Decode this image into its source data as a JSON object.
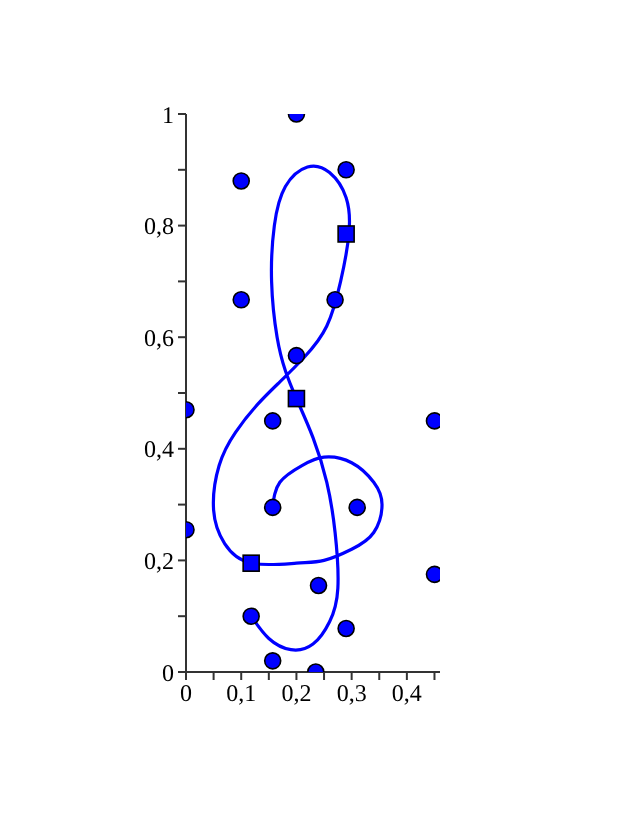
{
  "chart_data": {
    "type": "line",
    "xlim": [
      0,
      0.46
    ],
    "ylim": [
      0,
      1
    ],
    "xticks": [
      0,
      {
        "value": 0.05,
        "label": null
      },
      {
        "value": 0.1,
        "label": "0,1"
      },
      {
        "value": 0.15,
        "label": null
      },
      {
        "value": 0.2,
        "label": "0,2"
      },
      {
        "value": 0.25,
        "label": null
      },
      {
        "value": 0.3,
        "label": "0,3"
      },
      {
        "value": 0.35,
        "label": null
      },
      {
        "value": 0.4,
        "label": "0,4"
      },
      {
        "value": 0.45,
        "label": null
      }
    ],
    "yticks": [
      0,
      {
        "value": 0.1,
        "label": null
      },
      {
        "value": 0.2,
        "label": "0,2"
      },
      {
        "value": 0.3,
        "label": null
      },
      {
        "value": 0.4,
        "label": "0,4"
      },
      {
        "value": 0.5,
        "label": null
      },
      {
        "value": 0.6,
        "label": "0,6"
      },
      {
        "value": 0.7,
        "label": null
      },
      {
        "value": 0.8,
        "label": "0,8"
      },
      {
        "value": 0.9,
        "label": null
      },
      1
    ],
    "grid": false,
    "series": [
      {
        "color": "#0000ff",
        "marker": "none",
        "line_style": "solid",
        "x": [
          0.157,
          0.17,
          0.21,
          0.25,
          0.3,
          0.34,
          0.355,
          0.34,
          0.3,
          0.25,
          0.2,
          0.118,
          0.07,
          0.05,
          0.06,
          0.09,
          0.13,
          0.17,
          0.215,
          0.255,
          0.28,
          0.295,
          0.29,
          0.26,
          0.22,
          0.18,
          0.16,
          0.155,
          0.165,
          0.18,
          0.2,
          0.23,
          0.255,
          0.27,
          0.275,
          0.26,
          0.23,
          0.19,
          0.15,
          0.118
        ],
        "values": [
          0.295,
          0.34,
          0.37,
          0.385,
          0.375,
          0.34,
          0.3,
          0.25,
          0.22,
          0.2,
          0.195,
          0.195,
          0.23,
          0.29,
          0.37,
          0.43,
          0.48,
          0.52,
          0.565,
          0.62,
          0.7,
          0.785,
          0.85,
          0.895,
          0.905,
          0.87,
          0.8,
          0.7,
          0.6,
          0.54,
          0.49,
          0.42,
          0.34,
          0.25,
          0.15,
          0.09,
          0.05,
          0.04,
          0.06,
          0.1
        ]
      },
      {
        "type": "scatter",
        "color": "#0000ff",
        "marker": "circle",
        "x": [
          0.2,
          0.1,
          0.29,
          0.1,
          0.27,
          0.2,
          0,
          0.157,
          0.45,
          0,
          0.157,
          0.31,
          0.45,
          0.24,
          0.118,
          0.29,
          0.157,
          0.235
        ],
        "values": [
          1,
          0.88,
          0.9,
          0.667,
          0.667,
          0.567,
          0.47,
          0.45,
          0.45,
          0.255,
          0.295,
          0.295,
          0.175,
          0.155,
          0.1,
          0.078,
          0.02,
          0
        ]
      },
      {
        "type": "scatter",
        "color": "#0000ff",
        "marker": "square",
        "x": [
          0.2,
          0.29,
          0.118
        ],
        "values": [
          0.49,
          0.785,
          0.195
        ]
      }
    ]
  }
}
